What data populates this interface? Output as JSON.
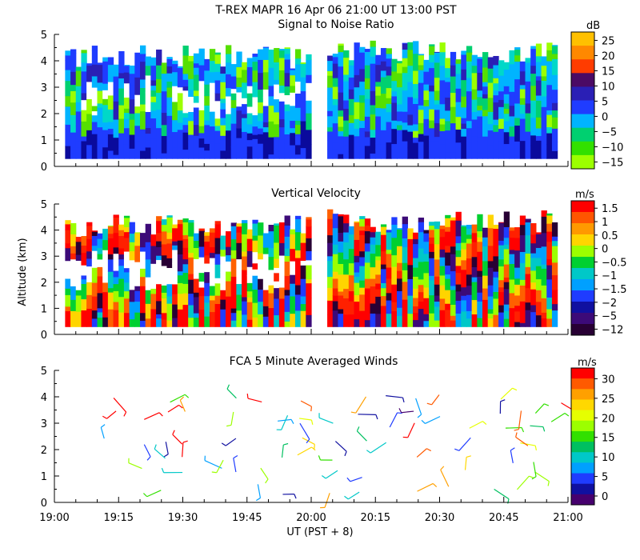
{
  "header": {
    "title": "T-REX   MAPR 16 Apr 06   21:00 UT   13:00   PST"
  },
  "x_axis": {
    "label": "UT  (PST + 8)",
    "ticks": [
      "19:00",
      "19:15",
      "19:30",
      "19:45",
      "20:00",
      "20:15",
      "20:30",
      "20:45",
      "21:00"
    ],
    "range_minutes": [
      0,
      120
    ]
  },
  "y_axis": {
    "label": "Altitude (km)",
    "ticks": [
      "0",
      "1",
      "2",
      "3",
      "4",
      "5"
    ],
    "range_km": [
      0,
      5
    ]
  },
  "colors": {
    "ramp": [
      "#34006a",
      "#0a0a9c",
      "#1f3cff",
      "#1e90ff",
      "#00b0ff",
      "#00d8c8",
      "#00c000",
      "#55e000",
      "#a0ff2a",
      "#e0e000",
      "#ffe000",
      "#ffa000",
      "#ff6000",
      "#ff2000",
      "#d00000"
    ]
  },
  "chart_data": [
    {
      "type": "heatmap",
      "id": "snr",
      "title": "Signal to Noise Ratio",
      "unit": "dB",
      "colorbar_ticks": [
        "25",
        "20",
        "15",
        "10",
        "5",
        "0",
        "−5",
        "−10",
        "−15"
      ],
      "colorbar_colors": [
        "#ffc000",
        "#ff8800",
        "#ff3c00",
        "#4b0a64",
        "#2a1fb5",
        "#1f3cff",
        "#00b4ff",
        "#00d070",
        "#32e000",
        "#9cff00"
      ],
      "data_gap_minutes": [
        59,
        63
      ],
      "altitude_coverage_km": [
        0.3,
        4.8
      ]
    },
    {
      "type": "heatmap",
      "id": "vertical-velocity",
      "title": "Vertical Velocity",
      "unit": "m/s",
      "colorbar_ticks": [
        "1.5",
        "1",
        "0.5",
        "0",
        "−0.5",
        "−1",
        "−1.5",
        "−2",
        "−5",
        "−12"
      ],
      "colorbar_colors": [
        "#ff0000",
        "#ff5500",
        "#ff9900",
        "#ffd500",
        "#9cff00",
        "#00d030",
        "#00c8c8",
        "#00a0ff",
        "#1f3cff",
        "#1010a0",
        "#3c0a78",
        "#280034"
      ],
      "data_gap_minutes": [
        59,
        63
      ],
      "altitude_coverage_km": [
        0.3,
        4.8
      ]
    },
    {
      "type": "scatter",
      "id": "fca-winds",
      "title": "FCA 5 Minute Averaged Winds",
      "unit": "m/s",
      "colorbar_ticks": [
        "30",
        "25",
        "20",
        "15",
        "10",
        "5",
        "0"
      ],
      "colorbar_colors": [
        "#ff0000",
        "#ff5a00",
        "#ffa000",
        "#ffd800",
        "#e6ff00",
        "#9cff00",
        "#32e000",
        "#00c060",
        "#00c8c8",
        "#00a0ff",
        "#1f3cff",
        "#1010a0",
        "#46006e"
      ],
      "wind_barb_times_min": [
        13,
        20,
        26,
        31,
        39,
        43,
        48,
        53,
        57,
        65,
        72,
        78,
        84,
        91,
        96,
        104,
        108,
        112,
        117
      ],
      "wind_barb_altitudes_km": [
        0.5,
        1.1,
        1.6,
        2.3,
        2.9,
        3.3,
        3.9
      ]
    }
  ]
}
